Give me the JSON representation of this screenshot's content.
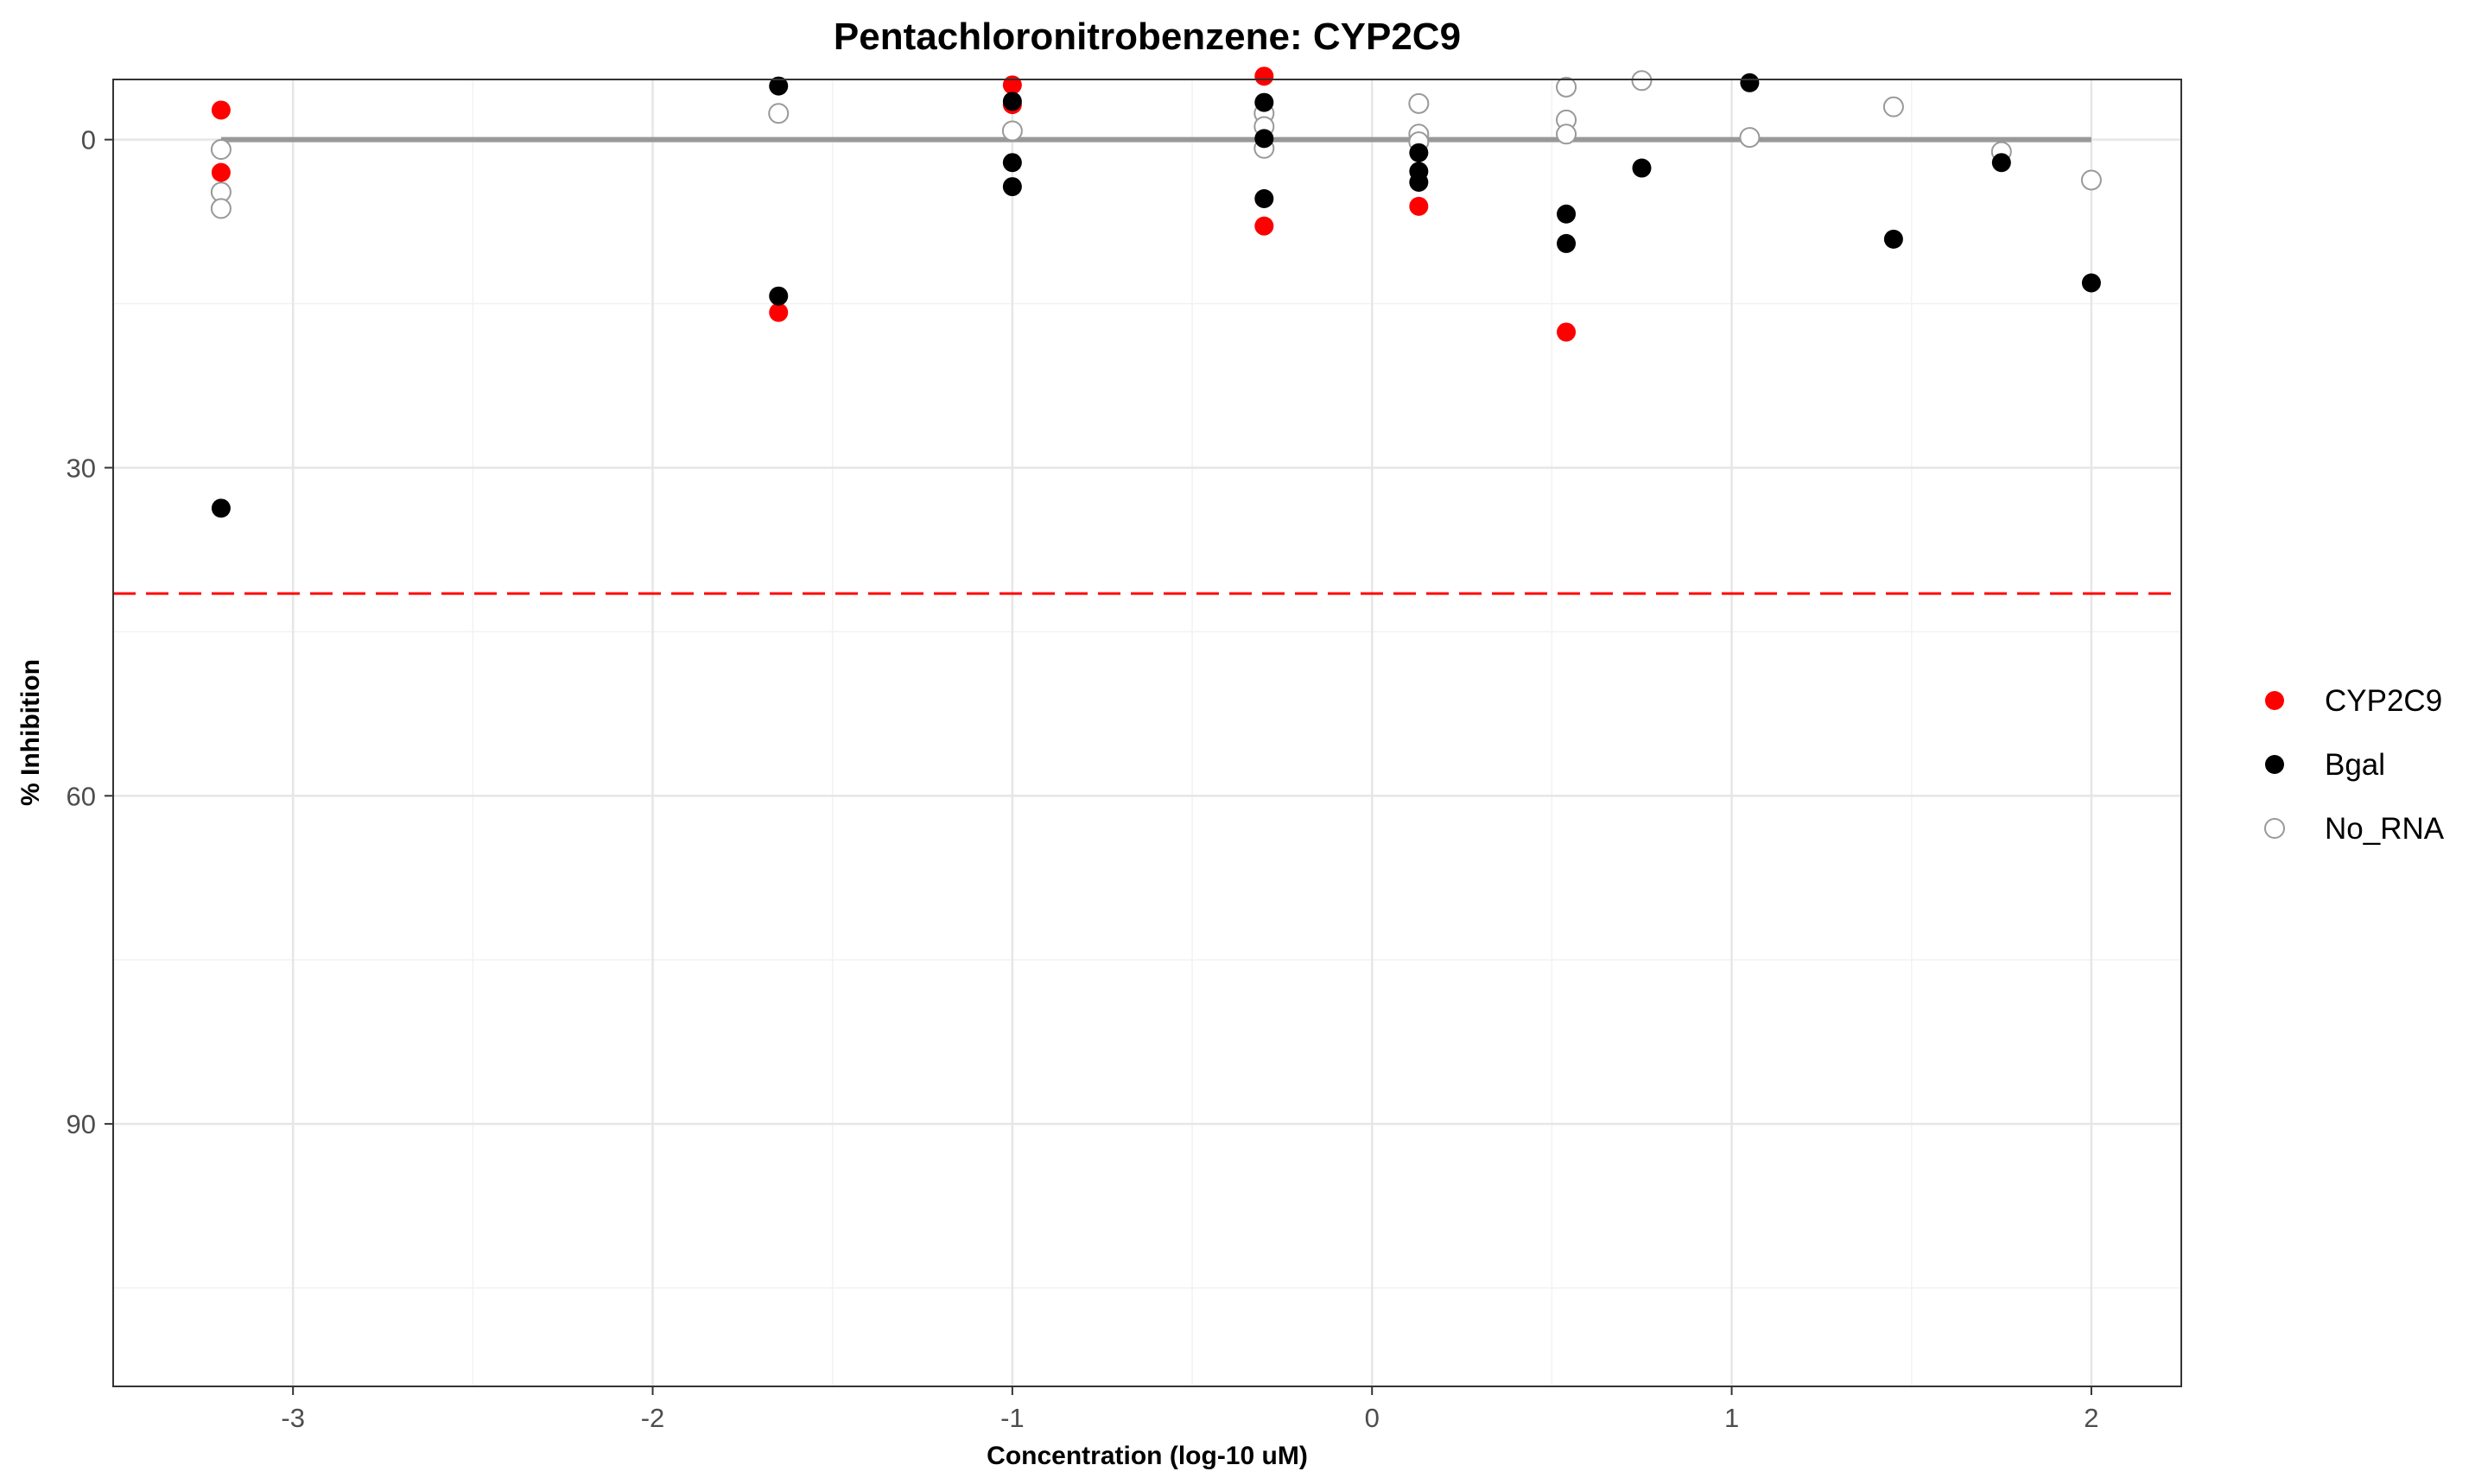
{
  "chart_data": {
    "type": "scatter",
    "title": "Pentachloronitrobenzene: CYP2C9",
    "xlabel": "Concentration (log-10 uM)",
    "ylabel": "% Inhibition",
    "xlim": [
      -3.5,
      2.25
    ],
    "ylim": [
      114,
      -5.5
    ],
    "y_reversed": true,
    "x_ticks": [
      -3,
      -2,
      -1,
      0,
      1,
      2
    ],
    "x_tick_labels": [
      "-3",
      "-2",
      "-1",
      "0",
      "1",
      "2"
    ],
    "y_ticks": [
      0,
      30,
      60,
      90
    ],
    "y_tick_labels": [
      "0",
      "30",
      "60",
      "90"
    ],
    "grid": true,
    "legend_position": "right",
    "reference_lines": [
      {
        "kind": "solid",
        "y": 0,
        "x_range": [
          -3.2,
          2.0
        ],
        "color": "#999999"
      },
      {
        "kind": "dashed",
        "y": 41.5,
        "color": "#ff0000"
      }
    ],
    "series": [
      {
        "name": "CYP2C9",
        "marker": "filled",
        "color": "#ff0000",
        "points": [
          {
            "x": -3.2,
            "y": -2.7
          },
          {
            "x": -3.2,
            "y": 3.0
          },
          {
            "x": -1.65,
            "y": 15.8
          },
          {
            "x": -1.0,
            "y": -5.0
          },
          {
            "x": -1.0,
            "y": -3.2
          },
          {
            "x": -0.3,
            "y": -5.8
          },
          {
            "x": -0.3,
            "y": 7.9
          },
          {
            "x": 0.13,
            "y": 6.1
          },
          {
            "x": 0.54,
            "y": 17.6
          }
        ]
      },
      {
        "name": "Bgal",
        "marker": "filled",
        "color": "#000000",
        "points": [
          {
            "x": -3.2,
            "y": 33.7
          },
          {
            "x": -1.65,
            "y": -4.9
          },
          {
            "x": -1.65,
            "y": 14.3
          },
          {
            "x": -1.0,
            "y": -3.5
          },
          {
            "x": -1.0,
            "y": 2.1
          },
          {
            "x": -1.0,
            "y": 4.3
          },
          {
            "x": -0.3,
            "y": -3.4
          },
          {
            "x": -0.3,
            "y": -0.1
          },
          {
            "x": -0.3,
            "y": 5.4
          },
          {
            "x": 0.13,
            "y": 1.2
          },
          {
            "x": 0.13,
            "y": 2.9
          },
          {
            "x": 0.13,
            "y": 3.9
          },
          {
            "x": 0.54,
            "y": 6.8
          },
          {
            "x": 0.54,
            "y": 9.5
          },
          {
            "x": 0.75,
            "y": 2.6
          },
          {
            "x": 1.05,
            "y": -5.2
          },
          {
            "x": 1.45,
            "y": 9.1
          },
          {
            "x": 1.75,
            "y": 2.1
          },
          {
            "x": 2.0,
            "y": 13.1
          }
        ]
      },
      {
        "name": "No_RNA",
        "marker": "hollow",
        "color": "#999999",
        "points": [
          {
            "x": -3.2,
            "y": 0.9
          },
          {
            "x": -3.2,
            "y": 4.8
          },
          {
            "x": -3.2,
            "y": 6.3
          },
          {
            "x": -1.65,
            "y": -2.4
          },
          {
            "x": -1.0,
            "y": -0.8
          },
          {
            "x": -0.3,
            "y": -2.4
          },
          {
            "x": -0.3,
            "y": -1.2
          },
          {
            "x": -0.3,
            "y": 0.8
          },
          {
            "x": 0.13,
            "y": -3.3
          },
          {
            "x": 0.13,
            "y": -0.5
          },
          {
            "x": 0.13,
            "y": 0.2
          },
          {
            "x": 0.54,
            "y": -4.8
          },
          {
            "x": 0.54,
            "y": -1.8
          },
          {
            "x": 0.54,
            "y": -0.5
          },
          {
            "x": 0.75,
            "y": -5.4
          },
          {
            "x": 1.05,
            "y": -0.2
          },
          {
            "x": 1.45,
            "y": -3.0
          },
          {
            "x": 1.75,
            "y": 1.1
          },
          {
            "x": 2.0,
            "y": 3.7
          }
        ]
      }
    ]
  }
}
